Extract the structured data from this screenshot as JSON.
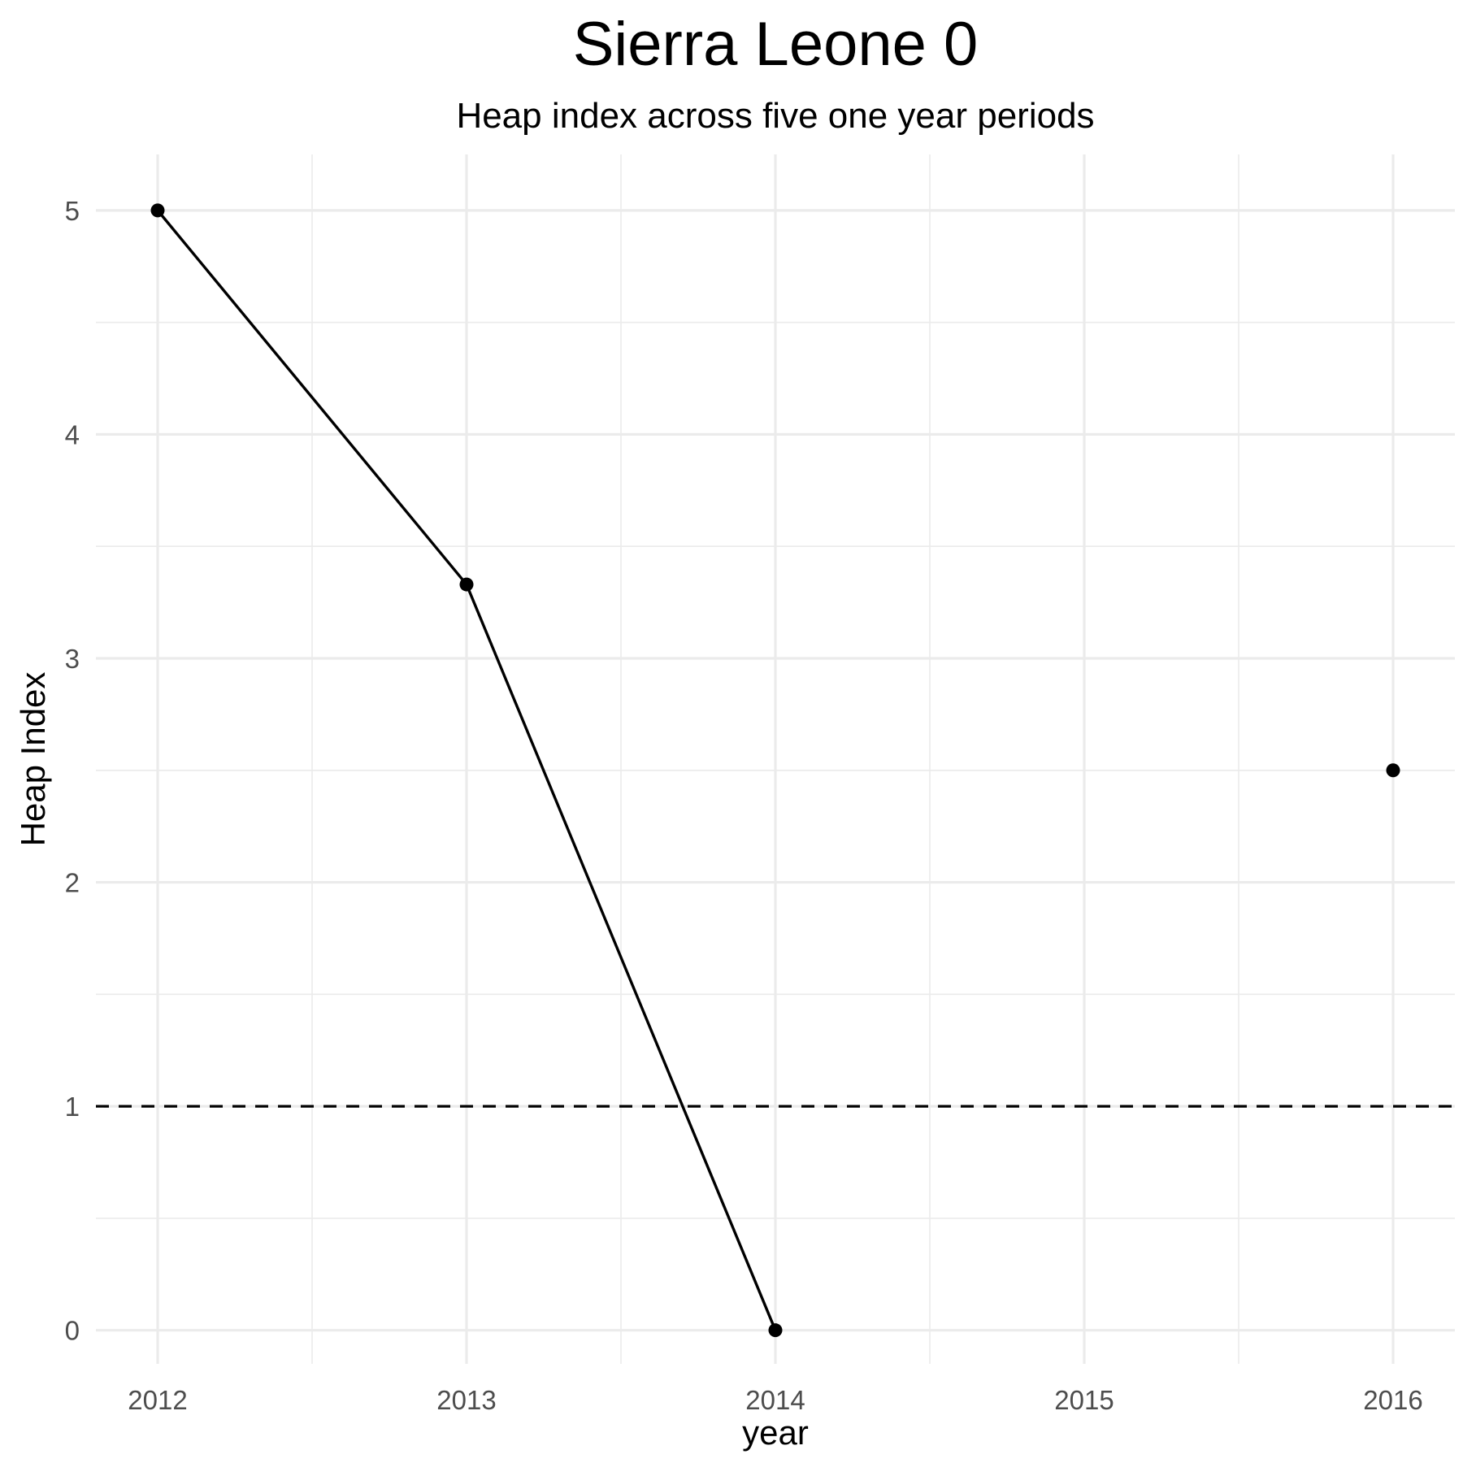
{
  "chart_data": {
    "type": "line",
    "title": "Sierra Leone 0",
    "subtitle": "Heap index across five one year periods",
    "xlabel": "year",
    "ylabel": "Heap Index",
    "x": [
      2012,
      2013,
      2014,
      2015,
      2016
    ],
    "x_tick_labels": [
      "2012",
      "2013",
      "2014",
      "2015",
      "2016"
    ],
    "y_ticks": [
      0,
      1,
      2,
      3,
      4,
      5
    ],
    "y_tick_labels": [
      "0",
      "1",
      "2",
      "3",
      "4",
      "5"
    ],
    "xlim": [
      2011.8,
      2016.2
    ],
    "ylim": [
      -0.15,
      5.25
    ],
    "series": [
      {
        "values": [
          5.0,
          3.33,
          0.0,
          null,
          2.5
        ],
        "color": "#000000"
      }
    ],
    "reference_line": {
      "y": 1,
      "style": "dashed",
      "color": "#000000"
    },
    "grid": true,
    "legend": "none"
  }
}
